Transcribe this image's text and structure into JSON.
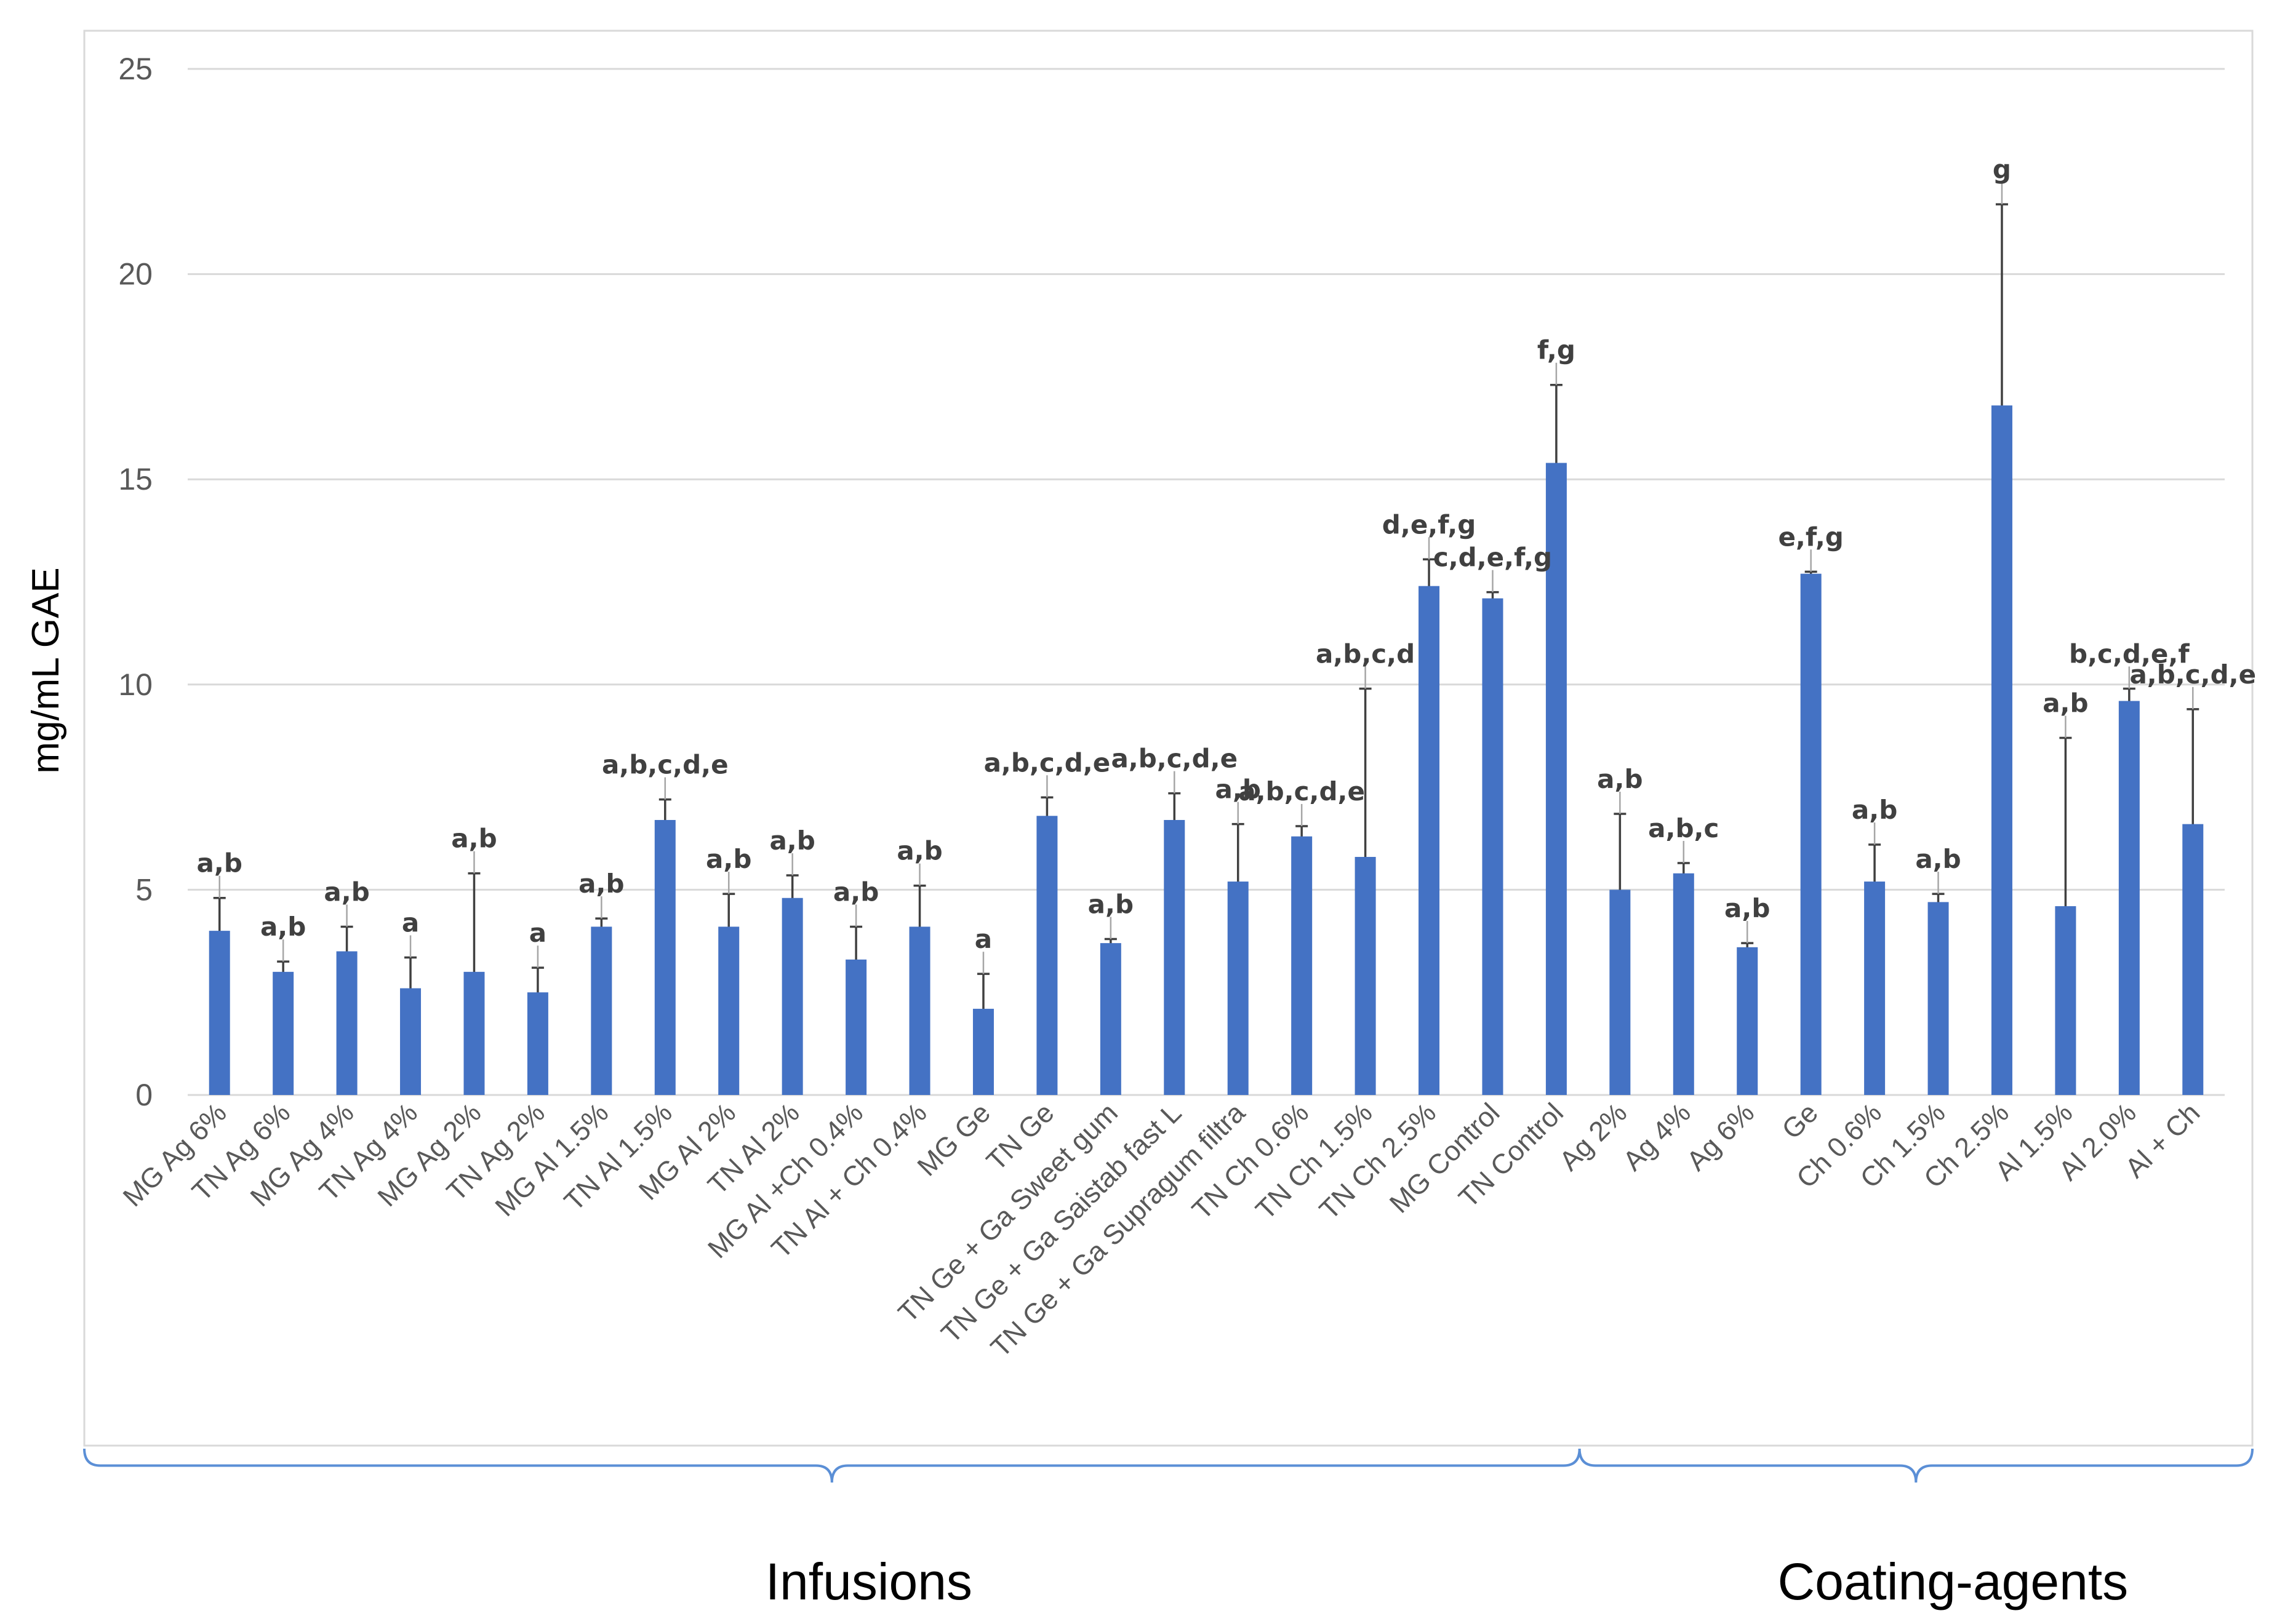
{
  "chart_data": {
    "type": "bar",
    "ylabel": "mg/mL GAE",
    "ylim": [
      0,
      25
    ],
    "yticks": [
      "0",
      "5",
      "10",
      "15",
      "20",
      "25"
    ],
    "grid": true,
    "bar_color": "#4472C4",
    "categories": [
      "MG Ag 6%",
      "TN Ag 6%",
      "MG Ag 4%",
      "TN Ag 4%",
      "MG Ag 2%",
      "TN Ag 2%",
      "MG Al 1.5%",
      "TN Al 1.5%",
      "MG Al 2%",
      "TN Al 2%",
      "MG Al +Ch 0.4%",
      "TN Al + Ch 0.4%",
      "MG Ge",
      "TN Ge",
      "TN Ge + Ga Sweet gum",
      "TN Ge + Ga Saistab fast L",
      "TN Ge + Ga Supragum filtra",
      "TN Ch 0.6%",
      "TN Ch 1.5%",
      "TN Ch 2.5%",
      "MG Control",
      "TN Control",
      "Ag 2%",
      "Ag 4%",
      "Ag 6%",
      "Ge",
      "Ch 0.6%",
      "Ch 1.5%",
      "Ch 2.5%",
      "Al 1.5%",
      "Al 2.0%",
      "Al + Ch"
    ],
    "values": [
      4.0,
      3.0,
      3.5,
      2.6,
      3.0,
      2.5,
      4.1,
      6.7,
      4.1,
      4.8,
      3.3,
      4.1,
      2.1,
      6.8,
      3.7,
      6.7,
      5.2,
      6.3,
      5.8,
      12.4,
      12.1,
      15.4,
      5.0,
      5.4,
      3.6,
      12.7,
      5.2,
      4.7,
      16.8,
      4.6,
      9.6,
      6.6
    ],
    "errors": [
      0.8,
      0.25,
      0.6,
      0.75,
      2.4,
      0.6,
      0.2,
      0.5,
      0.8,
      0.55,
      0.8,
      1.0,
      0.85,
      0.45,
      0.1,
      0.65,
      1.4,
      0.25,
      4.1,
      0.65,
      0.15,
      1.9,
      1.85,
      0.25,
      0.1,
      0.05,
      0.9,
      0.2,
      4.9,
      4.1,
      0.3,
      2.8
    ],
    "significance": [
      "a,b",
      "a,b",
      "a,b",
      "a",
      "a,b",
      "a",
      "a,b",
      "a,b,c,d,e",
      "a,b",
      "a,b",
      "a,b",
      "a,b",
      "a",
      "a,b,c,d,e",
      "a,b",
      "a,b,c,d,e",
      "a,b",
      "a,b,c,d,e",
      "a,b,c,d",
      "d,e,f,g",
      "c,d,e,f,g",
      "f,g",
      "a,b",
      "a,b,c",
      "a,b",
      "e,f,g",
      "a,b",
      "a,b",
      "g",
      "a,b",
      "b,c,d,e,f",
      "a,b,c,d,e"
    ],
    "groups": [
      {
        "name": "Infusions",
        "count": 22
      },
      {
        "name": "Coating-agents",
        "count": 10
      }
    ]
  }
}
